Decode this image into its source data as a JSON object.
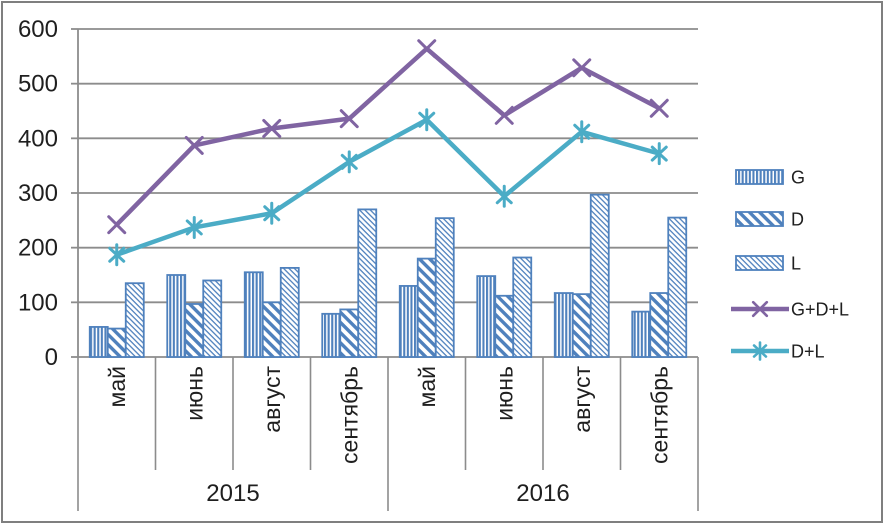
{
  "chart_data": {
    "type": "combo-bar-line",
    "title": "",
    "y_axis": {
      "min": 0,
      "max": 600,
      "step": 100,
      "ticks": [
        "0",
        "100",
        "200",
        "300",
        "400",
        "500",
        "600"
      ]
    },
    "groups": [
      {
        "year": "2015",
        "months": [
          "май",
          "июнь",
          "август",
          "сентябрь"
        ]
      },
      {
        "year": "2016",
        "months": [
          "май",
          "июнь",
          "август",
          "сентябрь"
        ]
      }
    ],
    "bar_series": [
      {
        "name": "G",
        "pattern": "vertical-stripes",
        "values": [
          55,
          150,
          155,
          79,
          130,
          148,
          117,
          83
        ]
      },
      {
        "name": "D",
        "pattern": "wide-diagonal-stripes",
        "values": [
          52,
          97,
          100,
          87,
          180,
          112,
          115,
          117
        ]
      },
      {
        "name": "L",
        "pattern": "fine-diagonal-hatch",
        "values": [
          135,
          140,
          163,
          270,
          254,
          182,
          297,
          255
        ]
      }
    ],
    "line_series": [
      {
        "name": "G+D+L",
        "marker": "x-cross",
        "color": "#8064a2",
        "values": [
          242,
          387,
          418,
          436,
          564,
          442,
          529,
          455
        ]
      },
      {
        "name": "D+L",
        "marker": "asterisk",
        "color": "#4bacc6",
        "values": [
          187,
          237,
          263,
          357,
          434,
          294,
          412,
          372
        ]
      }
    ],
    "legend": {
      "position": "right",
      "items": [
        "G",
        "D",
        "L",
        "G+D+L",
        "D+L"
      ]
    },
    "colors": {
      "bar_blue": "#4f81bd",
      "line_purple": "#8064a2",
      "line_teal": "#4bacc6",
      "gridline_gray": "#8c8c8c",
      "text": "#1f1f1f",
      "outer_border": "#7f7f7f",
      "background": "#ffffff"
    },
    "grid": "horizontal-only"
  }
}
